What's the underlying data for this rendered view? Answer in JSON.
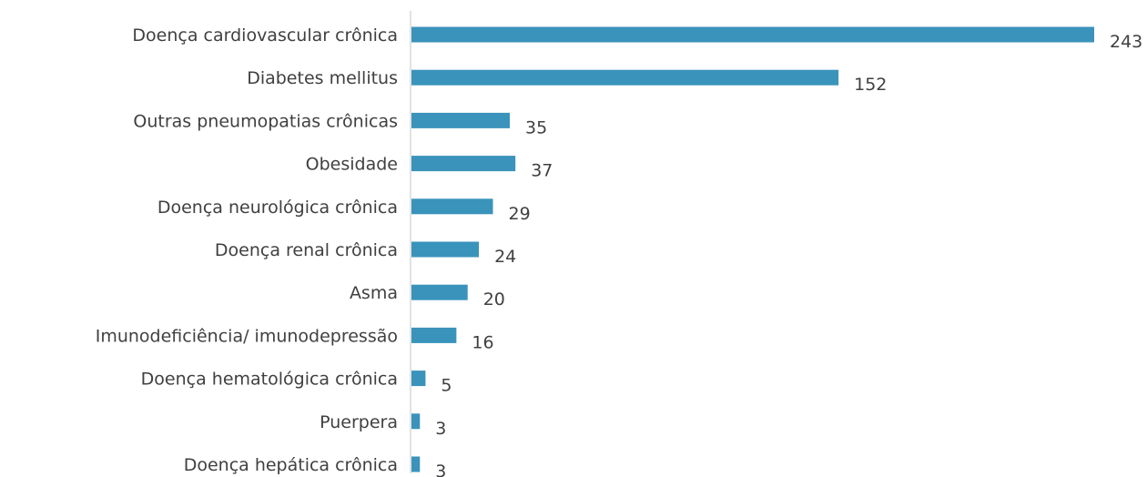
{
  "chart_data": {
    "type": "bar",
    "orientation": "horizontal",
    "categories": [
      "Doença cardiovascular crônica",
      "Diabetes mellitus",
      "Outras pneumopatias crônicas",
      "Obesidade",
      "Doença neurológica crônica",
      "Doença renal crônica",
      "Asma",
      "Imunodeficiência/ imunodepressão",
      "Doença hematológica crônica",
      "Puerpera",
      "Doença hepática crônica"
    ],
    "values": [
      243,
      152,
      35,
      37,
      29,
      24,
      20,
      16,
      5,
      3,
      3
    ],
    "title": "",
    "xlabel": "",
    "ylabel": "",
    "xlim": [
      0,
      243
    ],
    "grid": false,
    "legend": "none",
    "data_labels": true,
    "colors": {
      "bar": "#3a93bb",
      "axis": "#d9d9d9",
      "text": "#404040"
    }
  }
}
